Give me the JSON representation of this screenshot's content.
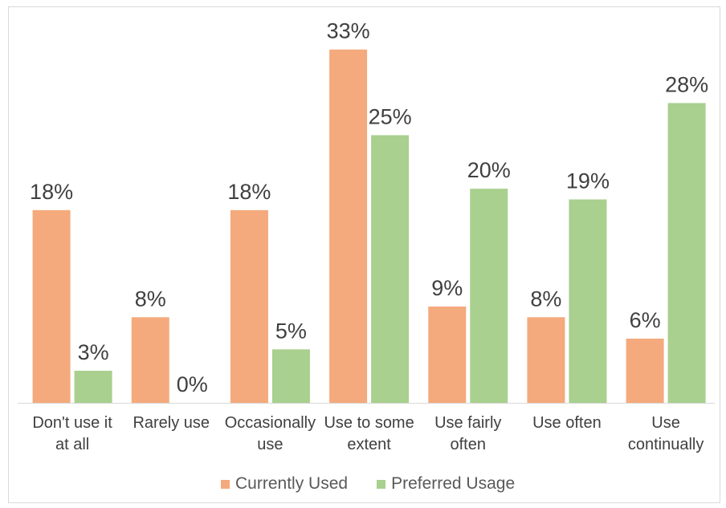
{
  "chart_data": {
    "type": "bar",
    "categories": [
      "Don't use it at all",
      "Rarely use",
      "Occasionally use",
      "Use to some extent",
      "Use fairly often",
      "Use often",
      "Use continually"
    ],
    "series": [
      {
        "name": "Currently Used",
        "color": "#F4AA7C",
        "values": [
          18,
          8,
          18,
          33,
          9,
          8,
          6
        ],
        "data_labels": [
          "18%",
          "8%",
          "18%",
          "33%",
          "9%",
          "8%",
          "6%"
        ]
      },
      {
        "name": "Preferred Usage",
        "color": "#A9D08E",
        "values": [
          3,
          0,
          5,
          25,
          20,
          19,
          28
        ],
        "data_labels": [
          "3%",
          "0%",
          "5%",
          "25%",
          "20%",
          "19%",
          "28%"
        ]
      }
    ],
    "ylim": [
      0,
      35
    ],
    "grid": false,
    "legend": "bottom"
  }
}
